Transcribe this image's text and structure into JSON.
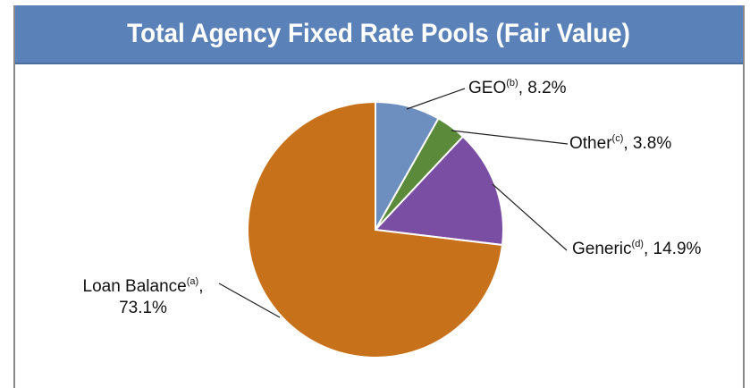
{
  "chart_data": {
    "type": "pie",
    "title": "Total Agency Fixed Rate Pools (Fair Value)",
    "slices": [
      {
        "name": "GEO",
        "note": "(b)",
        "value": 8.2,
        "label": "8.2%",
        "color": "#6d8fbf"
      },
      {
        "name": "Other",
        "note": "(c)",
        "value": 3.8,
        "label": "3.8%",
        "color": "#5b8a3a"
      },
      {
        "name": "Generic",
        "note": "(d)",
        "value": 14.9,
        "label": "14.9%",
        "color": "#7a4fa3"
      },
      {
        "name": "Loan Balance",
        "note": "(a)",
        "value": 73.1,
        "label": "73.1%",
        "color": "#c8711b"
      }
    ],
    "start_angle_deg": 0,
    "direction": "clockwise",
    "slice_border_color": "#ffffff",
    "leader_line_color": "#222222",
    "title_bar_color": "#5b82b8"
  }
}
